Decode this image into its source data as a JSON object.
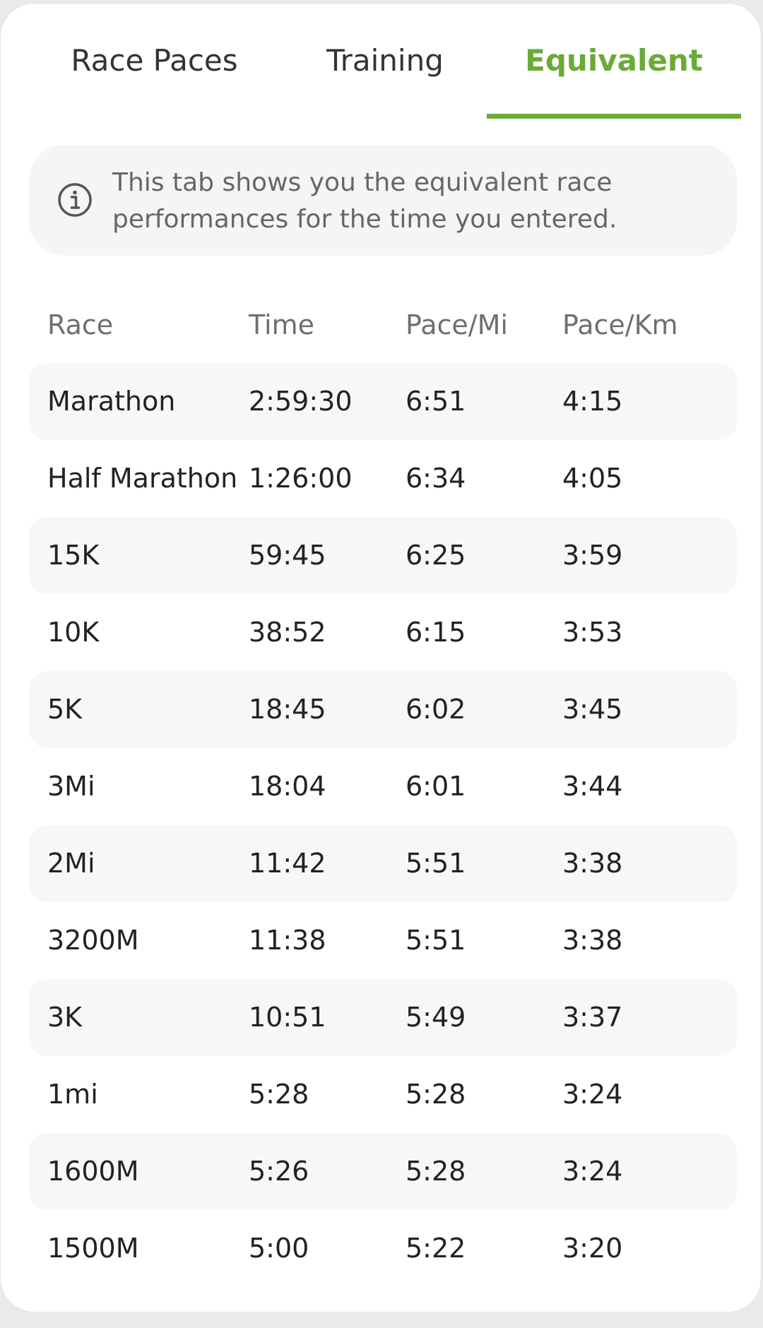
{
  "tabs": [
    {
      "label": "Race Paces",
      "active": false
    },
    {
      "label": "Training",
      "active": false
    },
    {
      "label": "Equivalent",
      "active": true
    }
  ],
  "accent_color": "#6aab37",
  "info": {
    "icon": "info-icon",
    "line1": "This tab shows you the equivalent race",
    "line2": "performances for the time you entered."
  },
  "table": {
    "headers": [
      "Race",
      "Time",
      "Pace/Mi",
      "Pace/Km"
    ],
    "rows": [
      [
        "Marathon",
        "2:59:30",
        "6:51",
        "4:15"
      ],
      [
        "Half Marathon",
        "1:26:00",
        "6:34",
        "4:05"
      ],
      [
        "15K",
        "59:45",
        "6:25",
        "3:59"
      ],
      [
        "10K",
        "38:52",
        "6:15",
        "3:53"
      ],
      [
        "5K",
        "18:45",
        "6:02",
        "3:45"
      ],
      [
        "3Mi",
        "18:04",
        "6:01",
        "3:44"
      ],
      [
        "2Mi",
        "11:42",
        "5:51",
        "3:38"
      ],
      [
        "3200M",
        "11:38",
        "5:51",
        "3:38"
      ],
      [
        "3K",
        "10:51",
        "5:49",
        "3:37"
      ],
      [
        "1mi",
        "5:28",
        "5:28",
        "3:24"
      ],
      [
        "1600M",
        "5:26",
        "5:28",
        "3:24"
      ],
      [
        "1500M",
        "5:00",
        "5:22",
        "3:20"
      ]
    ]
  }
}
